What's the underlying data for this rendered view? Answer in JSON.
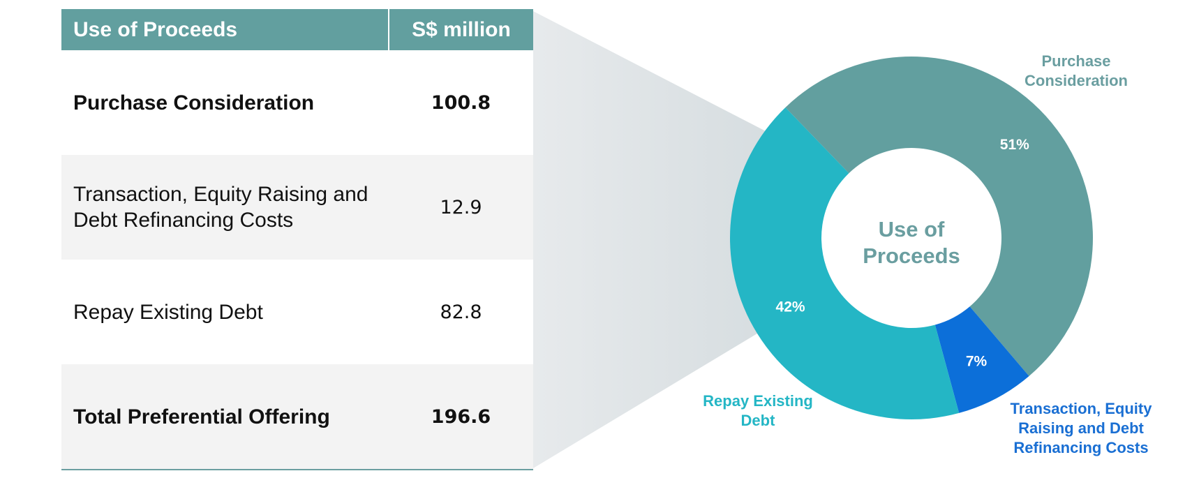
{
  "table": {
    "headers": [
      "Use of Proceeds",
      "S$ million"
    ],
    "rows": [
      {
        "item": "Purchase Consideration",
        "value": "100.8",
        "bold": true
      },
      {
        "item": "Transaction, Equity Raising and Debt Refinancing Costs",
        "value": "12.9",
        "bold": false
      },
      {
        "item": "Repay Existing Debt",
        "value": "82.8",
        "bold": false
      },
      {
        "item": "Total Preferential Offering",
        "value": "196.6",
        "bold": true
      }
    ]
  },
  "chart_data": {
    "type": "pie",
    "title": "Use of Proceeds",
    "categories": [
      "Purchase Consideration",
      "Transaction, Equity Raising and Debt Refinancing Costs",
      "Repay Existing Debt"
    ],
    "values": [
      51,
      7,
      42
    ],
    "value_labels": [
      "51%",
      "7%",
      "42%"
    ],
    "colors": [
      "#629f9f",
      "#0c6fd9",
      "#24b6c5"
    ],
    "label_colors": [
      "#6a9ea0",
      "#1a6fd3",
      "#24b6c5"
    ],
    "label_lines": [
      [
        "Purchase",
        "Consideration"
      ],
      [
        "Transaction, Equity",
        "Raising and Debt",
        "Refinancing Costs"
      ],
      [
        "Repay Existing",
        "Debt"
      ]
    ],
    "center_lines": [
      "Use of",
      "Proceeds"
    ],
    "donut": true,
    "legend": "none"
  }
}
